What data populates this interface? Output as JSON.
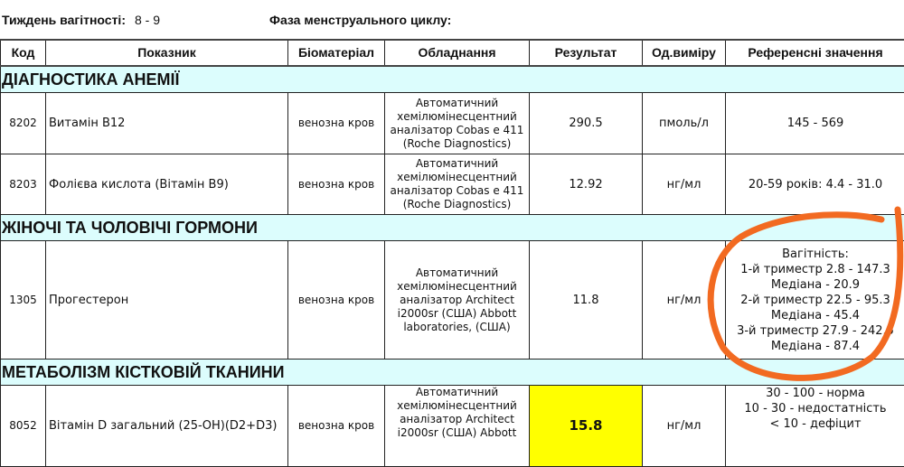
{
  "header": {
    "week_label": "Тиждень вагітності:",
    "week_value": "8 - 9",
    "phase_label": "Фаза менструального циклу:"
  },
  "columns": [
    "Код",
    "Показник",
    "Біоматеріал",
    "Обладнання",
    "Результат",
    "Од.виміру",
    "Референсні значення"
  ],
  "sections": [
    {
      "title": "ДІАГНОСТИКА АНЕМІЇ",
      "rows": [
        {
          "code": "8202",
          "name": "Витамін B12",
          "bio": "венозна кров",
          "equip": [
            "Автоматичний",
            "хемілюмінесцентний",
            "аналізатор Cobas e 411",
            "(Roche Diagnostics)"
          ],
          "result": "290.5",
          "unit": "пмоль/л",
          "ref": [
            "145 - 569"
          ]
        },
        {
          "code": "8203",
          "name": "Фолієва кислота (Вітамін B9)",
          "bio": "венозна кров",
          "equip": [
            "Автоматичний",
            "хемілюмінесцентний",
            "аналізатор Cobas e 411",
            "(Roche Diagnostics)"
          ],
          "result": "12.92",
          "unit": "нг/мл",
          "ref": [
            "20-59 років: 4.4 - 31.0"
          ]
        }
      ]
    },
    {
      "title": "ЖІНОЧІ ТА ЧОЛОВІЧІ ГОРМОНИ",
      "rows": [
        {
          "code": "1305",
          "name": "Прогестерон",
          "bio": "венозна кров",
          "equip": [
            "Автоматичний",
            "хемілюмінесцентний",
            "аналізатор Architect",
            "i2000sr (США) Abbott",
            "laboratories, (США)"
          ],
          "result": "11.8",
          "unit": "нг/мл",
          "ref": [
            "Вагітність:",
            "1-й триместр 2.8 - 147.3",
            "Медіана - 20.9",
            "2-й триместр 22.5 - 95.3",
            "Медіана - 45.4",
            "3-й триместр 27.9 - 242.5",
            "Медіана - 87.4"
          ]
        }
      ]
    },
    {
      "title": "МЕТАБОЛІЗМ КІСТКОВІЙ ТКАНИНИ",
      "rows": [
        {
          "code": "8052",
          "name": "Вітамін D загальний (25-OH)(D2+D3)",
          "bio": "венозна кров",
          "equip": [
            "Автоматичний",
            "хемілюмінесцентний",
            "аналізатор Architect",
            "i2000sr (США) Abbott"
          ],
          "result": "15.8",
          "unit": "нг/мл",
          "ref": [
            "30 - 100 - норма",
            "10 - 30 - недостатність",
            "< 10 - дефіцит"
          ],
          "highlight": true
        }
      ]
    }
  ],
  "colors": {
    "section_bg": "#dcfdfd",
    "highlight": "#ffff00",
    "annotation": "#f26a21"
  }
}
